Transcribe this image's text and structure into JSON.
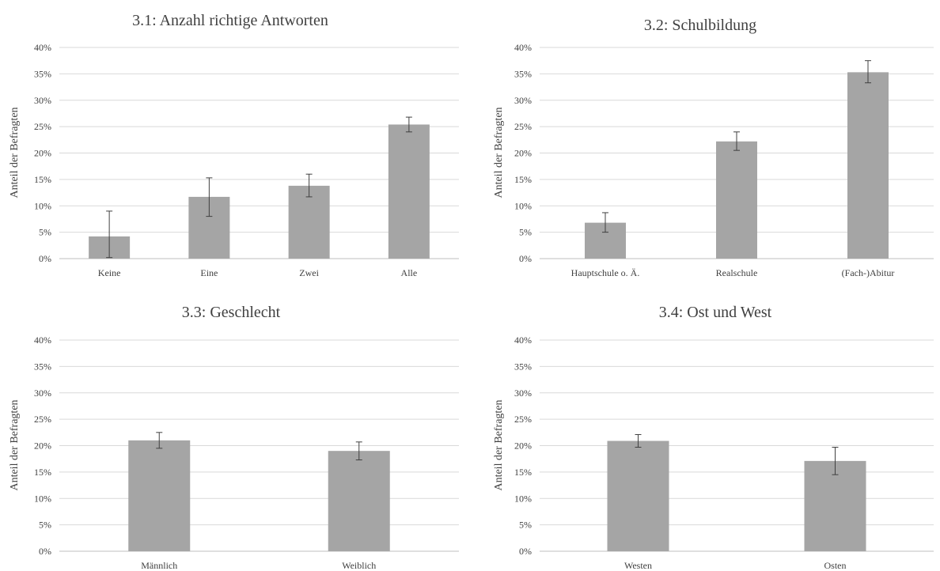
{
  "chart_data": [
    {
      "type": "bar",
      "title": "3.1: Anzahl richtige Antworten",
      "ylabel": "Anteil der Befragten",
      "xlabel": "",
      "ylim": [
        0,
        0.4
      ],
      "yticks": [
        "0%",
        "5%",
        "10%",
        "15%",
        "20%",
        "25%",
        "30%",
        "35%",
        "40%"
      ],
      "grid": true,
      "categories": [
        "Keine",
        "Eine",
        "Zwei",
        "Alle"
      ],
      "values": [
        0.042,
        0.117,
        0.138,
        0.254
      ],
      "error_low": [
        0.002,
        0.08,
        0.117,
        0.24
      ],
      "error_high": [
        0.09,
        0.153,
        0.16,
        0.268
      ]
    },
    {
      "type": "bar",
      "title": "3.2: Schulbildung",
      "ylabel": "Anteil der Befragten",
      "xlabel": "",
      "ylim": [
        0,
        0.4
      ],
      "yticks": [
        "0%",
        "5%",
        "10%",
        "15%",
        "20%",
        "25%",
        "30%",
        "35%",
        "40%"
      ],
      "grid": true,
      "categories": [
        "Hauptschule o. Ä.",
        "Realschule",
        "(Fach-)Abitur"
      ],
      "values": [
        0.068,
        0.222,
        0.353
      ],
      "error_low": [
        0.05,
        0.205,
        0.333
      ],
      "error_high": [
        0.087,
        0.24,
        0.375
      ]
    },
    {
      "type": "bar",
      "title": "3.3: Geschlecht",
      "ylabel": "Anteil der Befragten",
      "xlabel": "",
      "ylim": [
        0,
        0.4
      ],
      "yticks": [
        "0%",
        "5%",
        "10%",
        "15%",
        "20%",
        "25%",
        "30%",
        "35%",
        "40%"
      ],
      "grid": true,
      "categories": [
        "Männlich",
        "Weiblich"
      ],
      "values": [
        0.21,
        0.19
      ],
      "error_low": [
        0.195,
        0.173
      ],
      "error_high": [
        0.225,
        0.207
      ]
    },
    {
      "type": "bar",
      "title": "3.4: Ost und West",
      "ylabel": "Anteil der Befragten",
      "xlabel": "",
      "ylim": [
        0,
        0.4
      ],
      "yticks": [
        "0%",
        "5%",
        "10%",
        "15%",
        "20%",
        "25%",
        "30%",
        "35%",
        "40%"
      ],
      "grid": true,
      "categories": [
        "Westen",
        "Osten"
      ],
      "values": [
        0.209,
        0.171
      ],
      "error_low": [
        0.197,
        0.145
      ],
      "error_high": [
        0.221,
        0.197
      ]
    }
  ],
  "colors": {
    "bar": "#a5a5a5",
    "grid": "#d9d9d9",
    "text": "#404040",
    "error_bar": "#404040"
  }
}
